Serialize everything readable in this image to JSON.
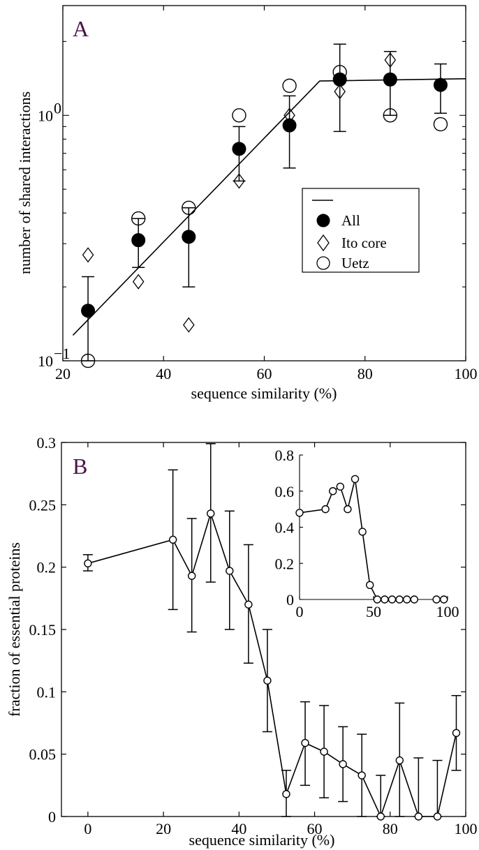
{
  "chart_data": [
    {
      "panel": "A",
      "type": "scatter",
      "xlabel": "sequence similarity (%)",
      "ylabel": "number of shared interactions",
      "xlim": [
        20,
        100
      ],
      "ylim": [
        0.1,
        2.8
      ],
      "yscale": "log",
      "x_ticks": [
        20,
        40,
        60,
        80,
        100
      ],
      "x_tick_labels": [
        "20",
        "40",
        "60",
        "80",
        "100"
      ],
      "y_major_ticks": [
        0.1,
        1
      ],
      "y_tick_labels": [
        {
          "base": "10",
          "exp": "−1"
        },
        {
          "base": "10",
          "exp": "0"
        }
      ],
      "series": [
        {
          "name": "All",
          "marker": "filled-circle",
          "x": [
            25,
            35,
            45,
            55,
            65,
            75,
            85,
            95
          ],
          "y": [
            0.16,
            0.31,
            0.32,
            0.73,
            0.91,
            1.4,
            1.4,
            1.33
          ],
          "err_low": [
            0.1,
            0.24,
            0.2,
            0.54,
            0.61,
            0.86,
            1.0,
            1.02
          ],
          "err_high": [
            0.22,
            0.38,
            0.42,
            0.9,
            1.2,
            1.95,
            1.82,
            1.62
          ]
        },
        {
          "name": "Ito core",
          "marker": "open-diamond",
          "x": [
            25,
            35,
            45,
            55,
            65,
            75,
            85,
            95
          ],
          "y": [
            0.27,
            0.21,
            0.14,
            0.54,
            1.0,
            1.25,
            1.68,
            1.33
          ]
        },
        {
          "name": "Uetz",
          "marker": "open-circle",
          "x": [
            25,
            35,
            45,
            55,
            65,
            75,
            85,
            95
          ],
          "y": [
            0.1,
            0.38,
            0.42,
            1.0,
            1.32,
            1.5,
            1.0,
            0.92
          ]
        }
      ],
      "fit_line": {
        "x": [
          22,
          71,
          100
        ],
        "y": [
          0.127,
          1.38,
          1.41
        ]
      },
      "legend": {
        "placement": "center-right",
        "entries": [
          "",
          "All",
          "Ito core",
          "Uetz"
        ]
      },
      "grid": false
    },
    {
      "panel": "B",
      "type": "line",
      "xlabel": "sequence similarity (%)",
      "ylabel": "fraction of essential proteins",
      "xlim": [
        -7,
        100
      ],
      "ylim": [
        0,
        0.3
      ],
      "x_ticks": [
        0,
        20,
        40,
        60,
        80,
        100
      ],
      "x_tick_labels": [
        "0",
        "20",
        "40",
        "60",
        "80",
        "100"
      ],
      "y_ticks": [
        0,
        0.05,
        0.1,
        0.15,
        0.2,
        0.25,
        0.3
      ],
      "y_tick_labels": [
        "0",
        "0.05",
        "0.1",
        "0.15",
        "0.2",
        "0.25",
        "0.3"
      ],
      "series": [
        {
          "marker": "open-circle",
          "x": [
            0,
            22.5,
            27.5,
            32.5,
            37.5,
            42.5,
            47.5,
            52.5,
            57.5,
            62.5,
            67.5,
            72.5,
            77.5,
            82.5,
            87.5,
            92.5,
            97.5
          ],
          "y": [
            0.203,
            0.222,
            0.193,
            0.243,
            0.197,
            0.17,
            0.109,
            0.018,
            0.059,
            0.052,
            0.042,
            0.033,
            0.0,
            0.045,
            0.0,
            0.0,
            0.067
          ],
          "err_low": [
            0.197,
            0.166,
            0.148,
            0.188,
            0.15,
            0.123,
            0.068,
            0.0,
            0.025,
            0.015,
            0.012,
            0.0,
            0.0,
            0.0,
            0.0,
            0.0,
            0.037
          ],
          "err_high": [
            0.21,
            0.278,
            0.239,
            0.299,
            0.245,
            0.218,
            0.15,
            0.037,
            0.092,
            0.089,
            0.072,
            0.066,
            0.033,
            0.091,
            0.047,
            0.045,
            0.097
          ]
        }
      ],
      "grid": false
    },
    {
      "panel": "B-inset",
      "type": "line",
      "xlim": [
        0,
        100
      ],
      "ylim": [
        0,
        0.8
      ],
      "x_ticks": [
        0,
        50,
        100
      ],
      "x_tick_labels": [
        "0",
        "50",
        "100"
      ],
      "y_ticks": [
        0,
        0.2,
        0.4,
        0.6,
        0.8
      ],
      "y_tick_labels": [
        "0",
        "0.2",
        "0.4",
        "0.6",
        "0.8"
      ],
      "series": [
        {
          "marker": "open-circle",
          "x": [
            0,
            17.5,
            22.5,
            27.5,
            32.5,
            37.5,
            42.5,
            47.5,
            52.5,
            57.5,
            62.5,
            67.5,
            72.5,
            77.5,
            92.5,
            97.5
          ],
          "y": [
            0.48,
            0.5,
            0.6,
            0.625,
            0.5,
            0.667,
            0.375,
            0.08,
            0,
            0,
            0,
            0,
            0,
            0,
            0,
            0
          ]
        }
      ]
    }
  ]
}
